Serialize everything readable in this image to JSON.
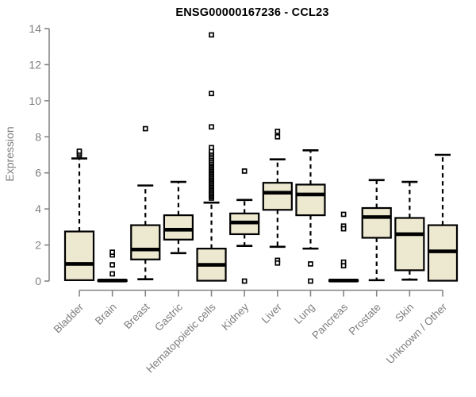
{
  "title": "ENSG00000167236 - CCL23",
  "colors": {
    "background": "#FFFFFF",
    "box_fill": "#EDE8D0",
    "box_stroke": "#000000",
    "median": "#000000",
    "whisker": "#000000",
    "outlier_stroke": "#000000",
    "outlier_fill": "#FFFFFF",
    "axis": "#858585",
    "tick_label": "#7E7E7E",
    "title": "#000000"
  },
  "chart_data": {
    "type": "boxplot",
    "title": "ENSG00000167236 - CCL23",
    "xlabel": "",
    "ylabel": "Expression",
    "ylim": [
      0,
      14
    ],
    "yticks": [
      0,
      2,
      4,
      6,
      8,
      10,
      12,
      14
    ],
    "grid": false,
    "legend": false,
    "categories": [
      "Bladder",
      "Brain",
      "Breast",
      "Gastric",
      "Hematopoietic cells",
      "Kidney",
      "Liver",
      "Lung",
      "Pancreas",
      "Prostate",
      "Skin",
      "Unknown / Other"
    ],
    "boxes": [
      {
        "category": "Bladder",
        "whisker_low": 0.05,
        "q1": 0.05,
        "median": 0.95,
        "q3": 2.75,
        "whisker_high": 6.8,
        "outliers": [
          7.0,
          7.1,
          7.2
        ]
      },
      {
        "category": "Brain",
        "whisker_low": 0.0,
        "q1": 0.0,
        "median": 0.03,
        "q3": 0.06,
        "whisker_high": 0.06,
        "outliers": [
          0.4,
          0.9,
          1.45,
          1.6
        ]
      },
      {
        "category": "Breast",
        "whisker_low": 0.1,
        "q1": 1.2,
        "median": 1.75,
        "q3": 3.1,
        "whisker_high": 5.3,
        "outliers": [
          8.45
        ]
      },
      {
        "category": "Gastric",
        "whisker_low": 1.55,
        "q1": 2.3,
        "median": 2.85,
        "q3": 3.65,
        "whisker_high": 5.5,
        "outliers": []
      },
      {
        "category": "Hematopoietic cells",
        "whisker_low": 0.02,
        "q1": 0.02,
        "median": 0.9,
        "q3": 1.8,
        "whisker_high": 4.35,
        "outliers": [
          4.6,
          4.68,
          4.76,
          4.84,
          4.92,
          5.0,
          5.08,
          5.16,
          5.24,
          5.32,
          5.4,
          5.48,
          5.56,
          5.64,
          5.72,
          5.8,
          5.88,
          5.96,
          6.04,
          6.12,
          6.2,
          6.28,
          6.36,
          6.44,
          6.52,
          6.6,
          6.7,
          6.8,
          6.9,
          7.0,
          7.1,
          7.2,
          7.4,
          8.55,
          10.4,
          13.65
        ]
      },
      {
        "category": "Kidney",
        "whisker_low": 1.95,
        "q1": 2.6,
        "median": 3.25,
        "q3": 3.75,
        "whisker_high": 4.5,
        "outliers": [
          6.1,
          0.0
        ]
      },
      {
        "category": "Liver",
        "whisker_low": 1.9,
        "q1": 3.95,
        "median": 4.9,
        "q3": 5.45,
        "whisker_high": 6.75,
        "outliers": [
          8.3,
          8.0,
          1.15,
          1.0
        ]
      },
      {
        "category": "Lung",
        "whisker_low": 1.8,
        "q1": 3.65,
        "median": 4.8,
        "q3": 5.35,
        "whisker_high": 7.25,
        "outliers": [
          0.95,
          0.0
        ]
      },
      {
        "category": "Pancreas",
        "whisker_low": 0.0,
        "q1": 0.0,
        "median": 0.03,
        "q3": 0.06,
        "whisker_high": 0.06,
        "outliers": [
          3.7,
          3.05,
          2.9,
          1.05,
          0.85
        ]
      },
      {
        "category": "Prostate",
        "whisker_low": 0.05,
        "q1": 2.4,
        "median": 3.55,
        "q3": 4.05,
        "whisker_high": 5.6,
        "outliers": []
      },
      {
        "category": "Skin",
        "whisker_low": 0.08,
        "q1": 0.6,
        "median": 2.6,
        "q3": 3.5,
        "whisker_high": 5.5,
        "outliers": []
      },
      {
        "category": "Unknown / Other",
        "whisker_low": 0.02,
        "q1": 0.02,
        "median": 1.65,
        "q3": 3.1,
        "whisker_high": 7.0,
        "outliers": []
      }
    ]
  }
}
